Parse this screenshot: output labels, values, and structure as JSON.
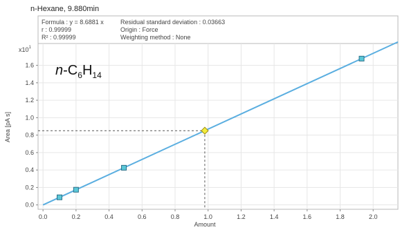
{
  "chart_data": {
    "type": "scatter",
    "title": "n-Hexane, 9.880min",
    "info": {
      "formula": "Formula : y = 8.6881 x",
      "r": "r : 0.99999",
      "r2": "R² : 0.99999",
      "residual": "Residual standard deviation : 0.03663",
      "origin": "Origin : Force",
      "weighting": "Weighting method : None"
    },
    "compound": {
      "prefix": "n",
      "sep": "-",
      "c": "C",
      "c_sub": "6",
      "h": "H",
      "h_sub": "14"
    },
    "ylabel": "Area [pA s]",
    "xlabel": "Amount",
    "y_multiplier": "x10",
    "y_multiplier_exp": "1",
    "xlim": [
      -0.03,
      2.15
    ],
    "ylim": [
      -0.05,
      1.85
    ],
    "x_ticks": [
      "0.0",
      "0.2",
      "0.4",
      "0.6",
      "0.8",
      "1.0",
      "1.2",
      "1.4",
      "1.6",
      "1.8",
      "2.0"
    ],
    "y_ticks": [
      "0.0",
      "0.2",
      "0.4",
      "0.6",
      "0.8",
      "1.0",
      "1.2",
      "1.4",
      "1.6"
    ],
    "fit": {
      "slope": 0.86881,
      "x_range": [
        0,
        2.15
      ],
      "color": "#5aaee0"
    },
    "points": [
      {
        "x": 0.1,
        "y": 0.087
      },
      {
        "x": 0.2,
        "y": 0.174
      },
      {
        "x": 0.49,
        "y": 0.426
      },
      {
        "x": 1.93,
        "y": 1.677
      }
    ],
    "point_color": "#5bc8d8",
    "unknown": {
      "x": 0.98,
      "y": 0.851,
      "color": "#f2ec3c"
    },
    "grid": true
  }
}
